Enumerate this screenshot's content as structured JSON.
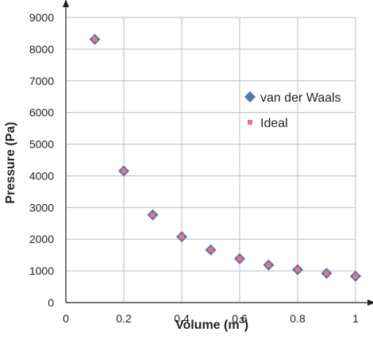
{
  "chart_data": {
    "type": "scatter",
    "x": [
      0.1,
      0.2,
      0.3,
      0.4,
      0.5,
      0.6,
      0.7,
      0.8,
      0.9,
      1.0
    ],
    "series": [
      {
        "name": "van der Waals",
        "marker": "diamond",
        "color": "#5a7aa8",
        "values": [
          8310,
          4155,
          2770,
          2078,
          1662,
          1385,
          1187,
          1039,
          923,
          831
        ]
      },
      {
        "name": "Ideal",
        "marker": "square",
        "color": "#e07a7a",
        "values": [
          8314,
          4157,
          2771,
          2079,
          1663,
          1386,
          1188,
          1039,
          924,
          831
        ]
      }
    ],
    "xlabel_main": "Volume (m",
    "xlabel_sup": "3",
    "xlabel_close": ")",
    "ylabel": "Pressure (Pa)",
    "xlim": [
      0,
      1
    ],
    "ylim": [
      0,
      9000
    ],
    "xticks": [
      "0",
      "0.2",
      "0.4",
      "0.6",
      "0.8",
      "1"
    ],
    "yticks": [
      "0",
      "1000",
      "2000",
      "3000",
      "4000",
      "5000",
      "6000",
      "7000",
      "8000",
      "9000"
    ],
    "grid": true,
    "legend_position": "right"
  }
}
